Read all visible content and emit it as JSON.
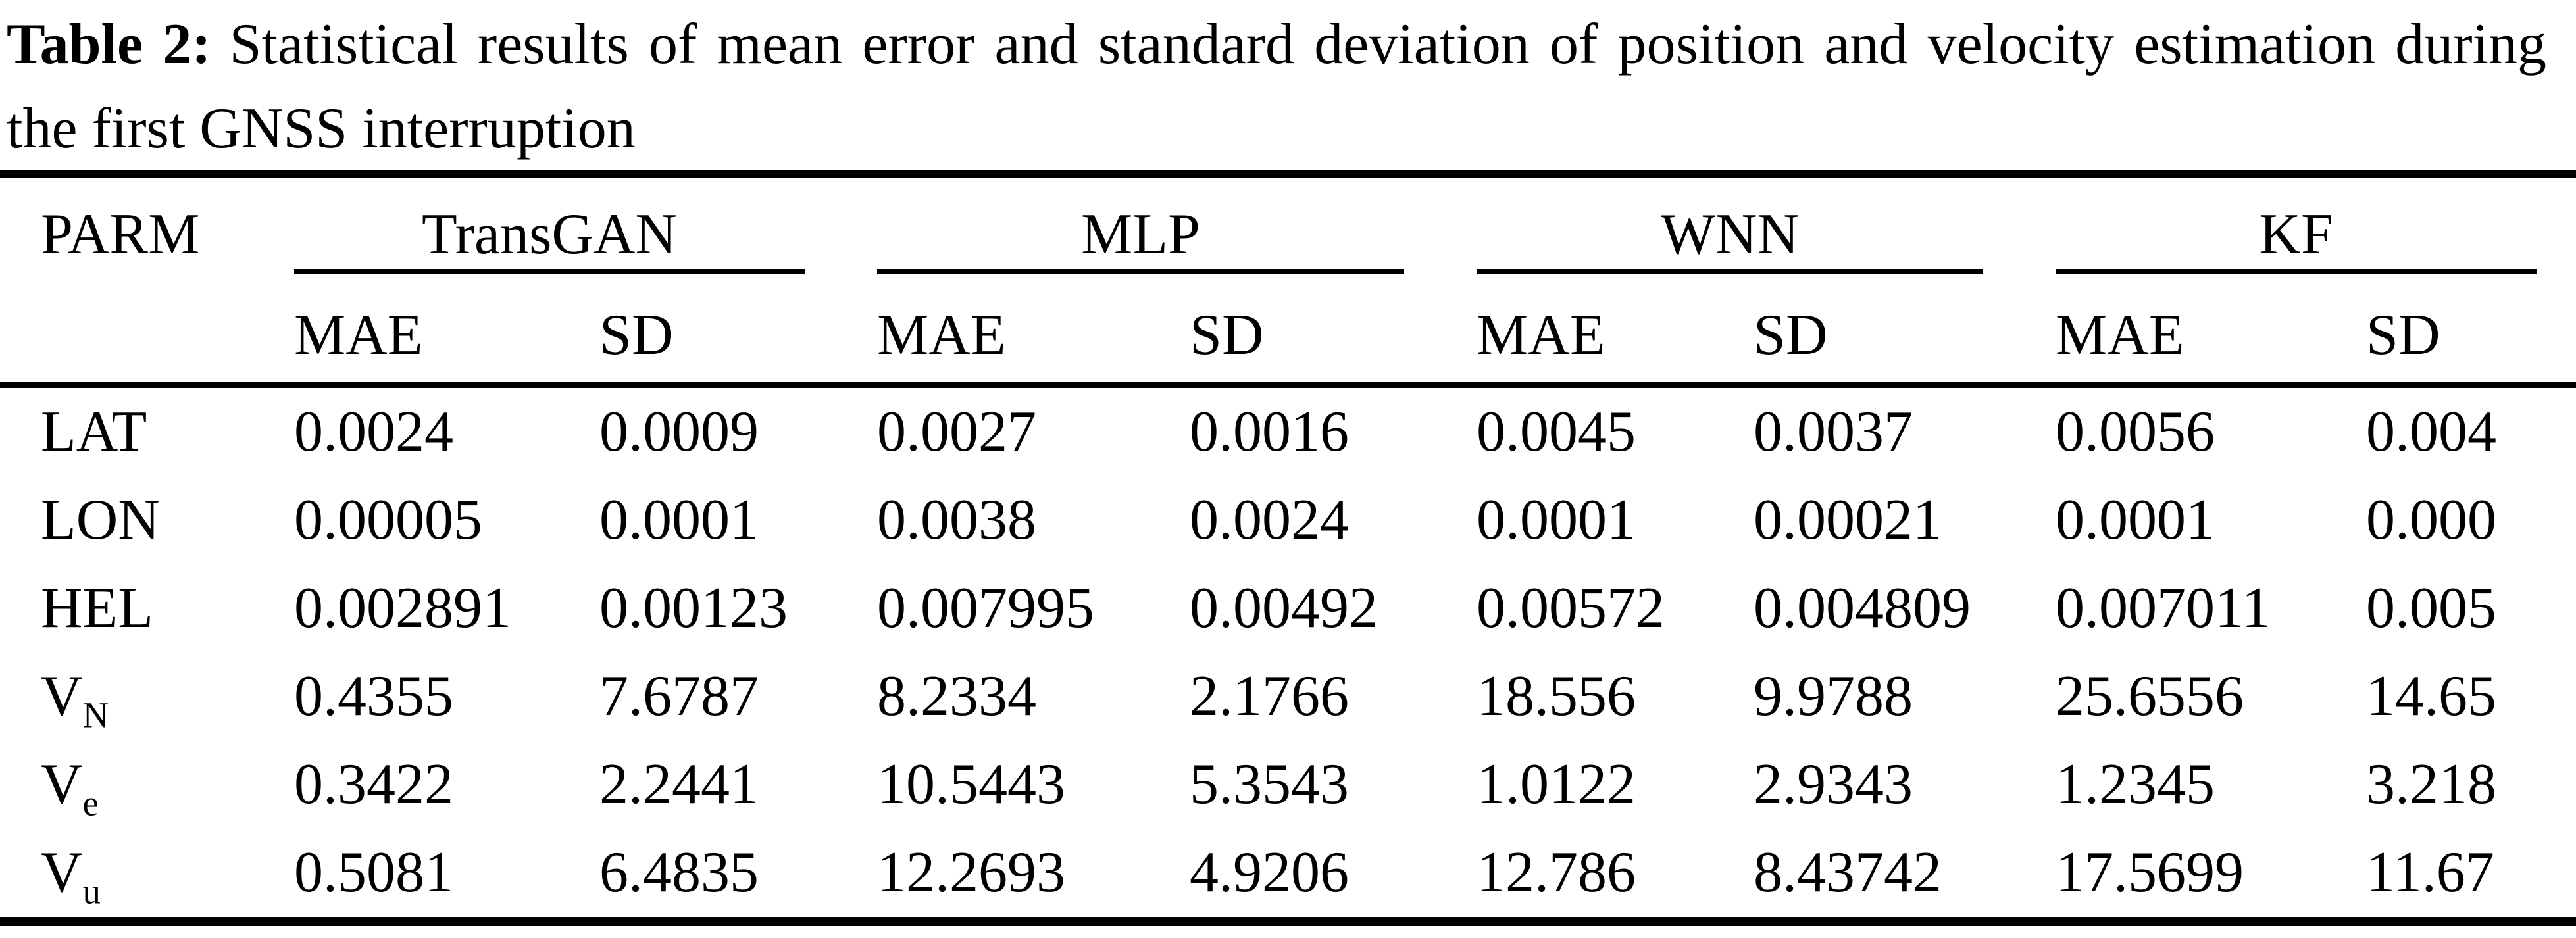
{
  "caption": {
    "label": "Table 2:",
    "text": "Statistical results of mean error and standard deviation of position and velocity estimation during the first GNSS interruption"
  },
  "table": {
    "param_header": "PARM",
    "groups": [
      {
        "label": "TransGAN"
      },
      {
        "label": "MLP"
      },
      {
        "label": "WNN"
      },
      {
        "label": "KF"
      }
    ],
    "subheaders": [
      "MAE",
      "SD"
    ],
    "rows": [
      {
        "param": "LAT",
        "param_sub": "",
        "values": [
          "0.0024",
          "0.0009",
          "0.0027",
          "0.0016",
          "0.0045",
          "0.0037",
          "0.0056",
          "0.004"
        ]
      },
      {
        "param": "LON",
        "param_sub": "",
        "values": [
          "0.00005",
          "0.0001",
          "0.0038",
          "0.0024",
          "0.0001",
          "0.00021",
          "0.0001",
          "0.000"
        ]
      },
      {
        "param": "HEL",
        "param_sub": "",
        "values": [
          "0.002891",
          "0.00123",
          "0.007995",
          "0.00492",
          "0.00572",
          "0.004809",
          "0.007011",
          "0.005"
        ]
      },
      {
        "param": "V",
        "param_sub": "N",
        "values": [
          "0.4355",
          "7.6787",
          "8.2334",
          "2.1766",
          "18.556",
          "9.9788",
          "25.6556",
          "14.65"
        ]
      },
      {
        "param": "V",
        "param_sub": "e",
        "values": [
          "0.3422",
          "2.2441",
          "10.5443",
          "5.3543",
          "1.0122",
          "2.9343",
          "1.2345",
          "3.218"
        ]
      },
      {
        "param": "V",
        "param_sub": "u",
        "values": [
          "0.5081",
          "6.4835",
          "12.2693",
          "4.9206",
          "12.786",
          "8.43742",
          "17.5699",
          "11.67"
        ]
      }
    ]
  }
}
